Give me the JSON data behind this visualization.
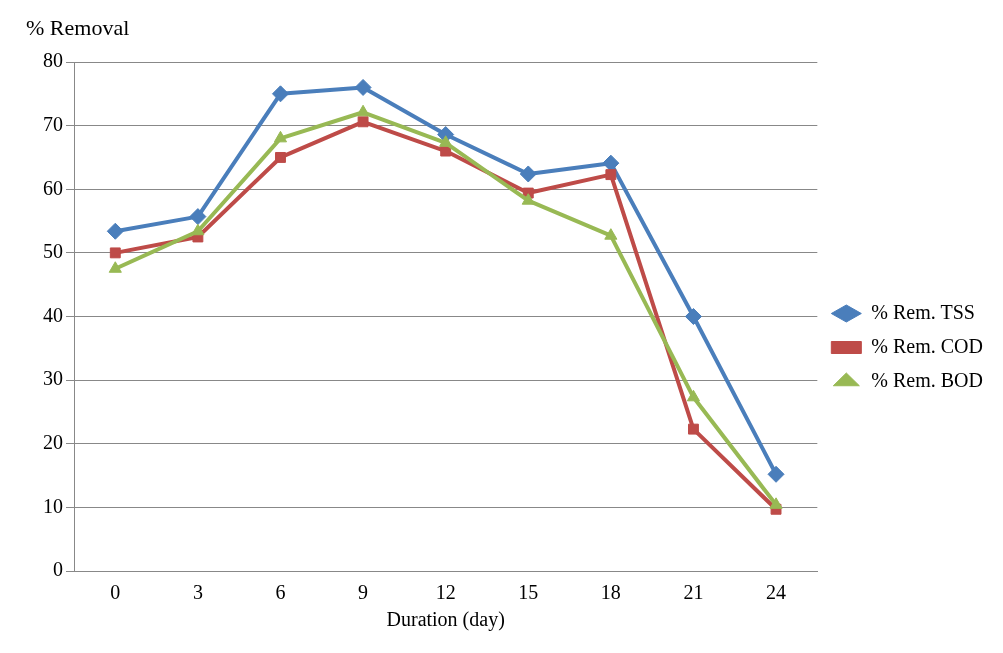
{
  "chart_data": {
    "type": "line",
    "ylabel": "% Removal",
    "xlabel": "Duration (day)",
    "categories": [
      "0",
      "3",
      "6",
      "9",
      "12",
      "15",
      "18",
      "21",
      "24"
    ],
    "series": [
      {
        "name": "% Rem. TSS",
        "color": "#4a7ebb",
        "marker": "diamond",
        "values": [
          53.4,
          55.7,
          75,
          76,
          68.6,
          62.4,
          64.1,
          40,
          15.2
        ]
      },
      {
        "name": "% Rem. COD",
        "color": "#be4b48",
        "marker": "square",
        "values": [
          50,
          52.5,
          65,
          70.6,
          66,
          59.4,
          62.3,
          22.3,
          9.7
        ]
      },
      {
        "name": "% Rem. BOD",
        "color": "#98b954",
        "marker": "triangle",
        "values": [
          47.5,
          53.4,
          68,
          72.1,
          67.3,
          58.2,
          52.7,
          27.3,
          10.4
        ]
      }
    ],
    "ylim": [
      0,
      80
    ],
    "yticks": [
      0,
      10,
      20,
      30,
      40,
      50,
      60,
      70,
      80
    ],
    "grid": "y",
    "legend": "right",
    "line_style": "solid"
  }
}
